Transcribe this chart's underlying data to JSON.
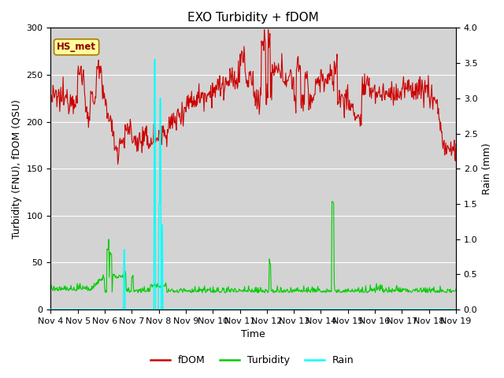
{
  "title": "EXO Turbidity + fDOM",
  "ylabel_left": "Turbidity (FNU), fDOM (QSU)",
  "ylabel_right": "Rain (mm)",
  "xlabel": "Time",
  "annotation_text": "HS_met",
  "xlim_days": [
    4,
    19
  ],
  "ylim_left": [
    0,
    300
  ],
  "ylim_right": [
    0,
    4.0
  ],
  "xtick_labels": [
    "Nov 4",
    "Nov 5",
    "Nov 6",
    "Nov 7",
    "Nov 8",
    "Nov 9",
    "Nov 10",
    "Nov 11",
    "Nov 12",
    "Nov 13",
    "Nov 14",
    "Nov 15",
    "Nov 16",
    "Nov 17",
    "Nov 18",
    "Nov 19"
  ],
  "yticks_left": [
    0,
    50,
    100,
    150,
    200,
    250,
    300
  ],
  "yticks_right": [
    0.0,
    0.5,
    1.0,
    1.5,
    2.0,
    2.5,
    3.0,
    3.5,
    4.0
  ],
  "fdom_color": "#cc0000",
  "turbidity_color": "#00cc00",
  "rain_color": "#00ffff",
  "background_color": "#d3d3d3",
  "legend_labels": [
    "fDOM",
    "Turbidity",
    "Rain"
  ],
  "title_fontsize": 11,
  "axis_label_fontsize": 9,
  "tick_fontsize": 8
}
